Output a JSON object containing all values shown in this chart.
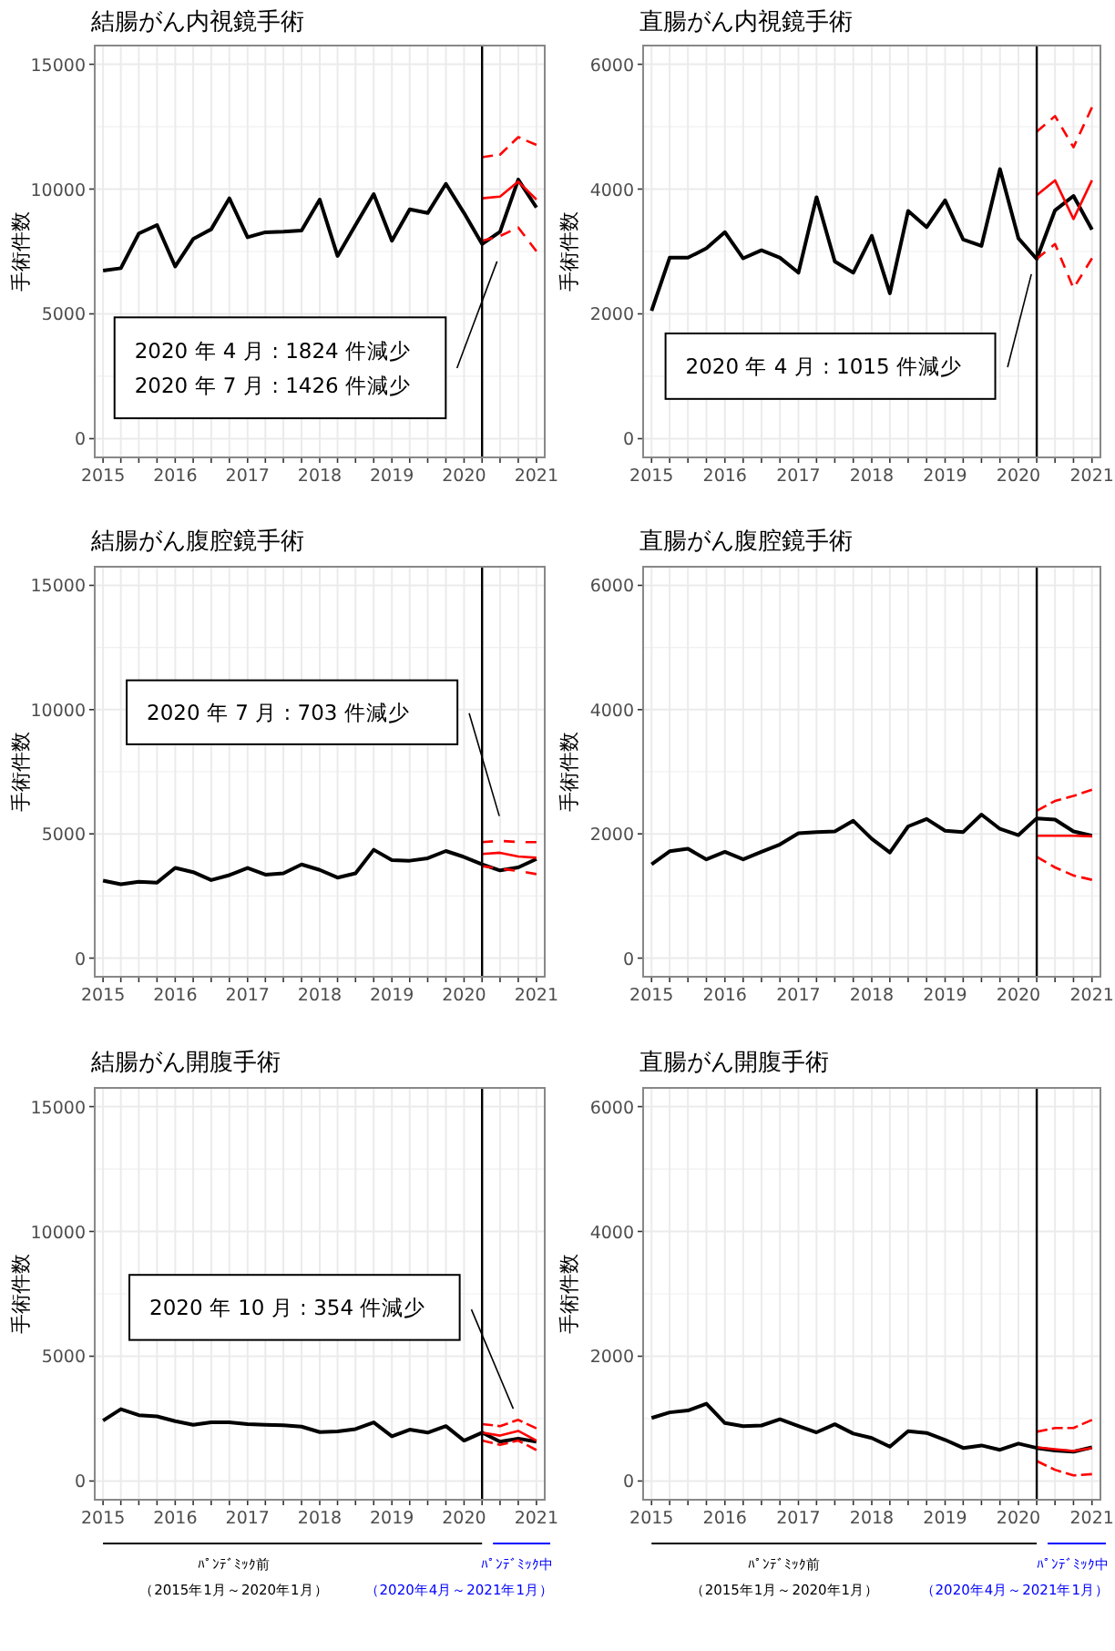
{
  "chart_data": [
    {
      "type": "line",
      "title": "結腸がん内視鏡手術",
      "ylabel": "手術件数",
      "x": [
        "2015-01",
        "2015-04",
        "2015-07",
        "2015-10",
        "2016-01",
        "2016-04",
        "2016-07",
        "2016-10",
        "2017-01",
        "2017-04",
        "2017-07",
        "2017-10",
        "2018-01",
        "2018-04",
        "2018-07",
        "2018-10",
        "2019-01",
        "2019-04",
        "2019-07",
        "2019-10",
        "2020-01",
        "2020-04",
        "2020-07",
        "2020-10",
        "2021-01"
      ],
      "series": [
        {
          "color": "#000000",
          "line_style": "solid",
          "values": [
            6730,
            6830,
            8220,
            8560,
            6900,
            8000,
            8390,
            9630,
            8070,
            8270,
            8290,
            8340,
            9580,
            7320,
            8560,
            9800,
            7930,
            9190,
            9040,
            10210,
            9040,
            7800,
            8290,
            10380,
            9260
          ]
        },
        {
          "color": "#ff0000",
          "line_style": "solid",
          "x": [
            "2020-04",
            "2020-07",
            "2020-10",
            "2021-01"
          ],
          "values": [
            9630,
            9700,
            10300,
            9580
          ]
        },
        {
          "color": "#ff0000",
          "line_style": "dashed",
          "x": [
            "2020-04",
            "2020-07",
            "2020-10",
            "2021-01"
          ],
          "values": [
            11280,
            11380,
            12080,
            11770
          ]
        },
        {
          "color": "#ff0000",
          "line_style": "dashed",
          "x": [
            "2020-04",
            "2020-07",
            "2020-10",
            "2021-01"
          ],
          "values": [
            7930,
            8120,
            8460,
            7510
          ]
        }
      ],
      "annotations": [
        "2020 年 4 月 : 1824 件減少",
        "2020 年 7 月 : 1426 件減少"
      ],
      "ref_lines": [
        {
          "axis": "x",
          "value": "2020-04",
          "color": "#000000"
        }
      ],
      "xlim": [
        "2014-11-20",
        "2021-02-12"
      ],
      "ylim": [
        -750,
        15750
      ],
      "yticks": [
        0,
        5000,
        10000,
        15000
      ],
      "xticks": [
        {
          "value": "2015-01",
          "label": "2015"
        },
        {
          "value": "2015-04",
          "label": null
        },
        {
          "value": "2015-07",
          "label": null
        },
        {
          "value": "2015-10",
          "label": null
        },
        {
          "value": "2016-01",
          "label": "2016"
        },
        {
          "value": "2016-04",
          "label": null
        },
        {
          "value": "2016-07",
          "label": null
        },
        {
          "value": "2016-10",
          "label": null
        },
        {
          "value": "2017-01",
          "label": "2017"
        },
        {
          "value": "2017-04",
          "label": null
        },
        {
          "value": "2017-07",
          "label": null
        },
        {
          "value": "2017-10",
          "label": null
        },
        {
          "value": "2018-01",
          "label": "2018"
        },
        {
          "value": "2018-04",
          "label": null
        },
        {
          "value": "2018-07",
          "label": null
        },
        {
          "value": "2018-10",
          "label": null
        },
        {
          "value": "2019-01",
          "label": "2019"
        },
        {
          "value": "2019-04",
          "label": null
        },
        {
          "value": "2019-07",
          "label": null
        },
        {
          "value": "2019-10",
          "label": null
        },
        {
          "value": "2020-01",
          "label": "2020"
        },
        {
          "value": "2020-04",
          "label": null
        },
        {
          "value": "2020-07",
          "label": null
        },
        {
          "value": "2020-10",
          "label": null
        },
        {
          "value": "2021-01",
          "label": "2021"
        }
      ],
      "grid": true
    },
    {
      "type": "line",
      "title": "直腸がん内視鏡手術",
      "ylabel": "手術件数",
      "x": [
        "2015-01",
        "2015-04",
        "2015-07",
        "2015-10",
        "2016-01",
        "2016-04",
        "2016-07",
        "2016-10",
        "2017-01",
        "2017-04",
        "2017-07",
        "2017-10",
        "2018-01",
        "2018-04",
        "2018-07",
        "2018-10",
        "2019-01",
        "2019-04",
        "2019-07",
        "2019-10",
        "2020-01",
        "2020-04",
        "2020-07",
        "2020-10",
        "2021-01"
      ],
      "series": [
        {
          "color": "#000000",
          "line_style": "solid",
          "values": [
            2050,
            2900,
            2900,
            3050,
            3310,
            2890,
            3020,
            2900,
            2660,
            3870,
            2840,
            2660,
            3250,
            2330,
            3650,
            3390,
            3820,
            3190,
            3090,
            4320,
            3210,
            2880,
            3660,
            3890,
            3350
          ]
        },
        {
          "color": "#ff0000",
          "line_style": "solid",
          "x": [
            "2020-04",
            "2020-07",
            "2020-10",
            "2021-01"
          ],
          "values": [
            3900,
            4140,
            3520,
            4140
          ]
        },
        {
          "color": "#ff0000",
          "line_style": "dashed",
          "x": [
            "2020-04",
            "2020-07",
            "2020-10",
            "2021-01"
          ],
          "values": [
            4920,
            5170,
            4670,
            5310
          ]
        },
        {
          "color": "#ff0000",
          "line_style": "dashed",
          "x": [
            "2020-04",
            "2020-07",
            "2020-10",
            "2021-01"
          ],
          "values": [
            2880,
            3120,
            2410,
            2890
          ]
        }
      ],
      "annotations": [
        "2020 年 4 月 : 1015 件減少"
      ],
      "ref_lines": [
        {
          "axis": "x",
          "value": "2020-04",
          "color": "#000000"
        }
      ],
      "xlim": [
        "2014-11-20",
        "2021-02-12"
      ],
      "ylim": [
        -300,
        6300
      ],
      "yticks": [
        0,
        2000,
        4000,
        6000
      ],
      "xticks": [
        {
          "value": "2015-01",
          "label": "2015"
        },
        {
          "value": "2015-04",
          "label": null
        },
        {
          "value": "2015-07",
          "label": null
        },
        {
          "value": "2015-10",
          "label": null
        },
        {
          "value": "2016-01",
          "label": "2016"
        },
        {
          "value": "2016-04",
          "label": null
        },
        {
          "value": "2016-07",
          "label": null
        },
        {
          "value": "2016-10",
          "label": null
        },
        {
          "value": "2017-01",
          "label": "2017"
        },
        {
          "value": "2017-04",
          "label": null
        },
        {
          "value": "2017-07",
          "label": null
        },
        {
          "value": "2017-10",
          "label": null
        },
        {
          "value": "2018-01",
          "label": "2018"
        },
        {
          "value": "2018-04",
          "label": null
        },
        {
          "value": "2018-07",
          "label": null
        },
        {
          "value": "2018-10",
          "label": null
        },
        {
          "value": "2019-01",
          "label": "2019"
        },
        {
          "value": "2019-04",
          "label": null
        },
        {
          "value": "2019-07",
          "label": null
        },
        {
          "value": "2019-10",
          "label": null
        },
        {
          "value": "2020-01",
          "label": "2020"
        },
        {
          "value": "2020-04",
          "label": null
        },
        {
          "value": "2020-07",
          "label": null
        },
        {
          "value": "2020-10",
          "label": null
        },
        {
          "value": "2021-01",
          "label": "2021"
        }
      ],
      "grid": true
    },
    {
      "type": "line",
      "title": "結腸がん腹腔鏡手術",
      "ylabel": "手術件数",
      "x": [
        "2015-01",
        "2015-04",
        "2015-07",
        "2015-10",
        "2016-01",
        "2016-04",
        "2016-07",
        "2016-10",
        "2017-01",
        "2017-04",
        "2017-07",
        "2017-10",
        "2018-01",
        "2018-04",
        "2018-07",
        "2018-10",
        "2019-01",
        "2019-04",
        "2019-07",
        "2019-10",
        "2020-01",
        "2020-04",
        "2020-07",
        "2020-10",
        "2021-01"
      ],
      "series": [
        {
          "color": "#000000",
          "line_style": "solid",
          "values": [
            3120,
            2970,
            3070,
            3040,
            3630,
            3460,
            3140,
            3340,
            3630,
            3360,
            3410,
            3770,
            3550,
            3240,
            3410,
            4360,
            3940,
            3920,
            4020,
            4310,
            4070,
            3770,
            3530,
            3650,
            3990
          ]
        },
        {
          "color": "#ff0000",
          "line_style": "solid",
          "x": [
            "2020-04",
            "2020-07",
            "2020-10",
            "2021-01"
          ],
          "values": [
            4190,
            4240,
            4090,
            4040
          ]
        },
        {
          "color": "#ff0000",
          "line_style": "dashed",
          "x": [
            "2020-04",
            "2020-07",
            "2020-10",
            "2021-01"
          ],
          "values": [
            4670,
            4720,
            4670,
            4670
          ]
        },
        {
          "color": "#ff0000",
          "line_style": "dashed",
          "x": [
            "2020-04",
            "2020-07",
            "2020-10",
            "2021-01"
          ],
          "values": [
            3700,
            3600,
            3510,
            3380
          ]
        }
      ],
      "annotations": [
        "2020 年 7 月 : 703 件減少"
      ],
      "ref_lines": [
        {
          "axis": "x",
          "value": "2020-04",
          "color": "#000000"
        }
      ],
      "xlim": [
        "2014-11-20",
        "2021-02-12"
      ],
      "ylim": [
        -750,
        15750
      ],
      "yticks": [
        0,
        5000,
        10000,
        15000
      ],
      "xticks": [
        {
          "value": "2015-01",
          "label": "2015"
        },
        {
          "value": "2015-04",
          "label": null
        },
        {
          "value": "2015-07",
          "label": null
        },
        {
          "value": "2015-10",
          "label": null
        },
        {
          "value": "2016-01",
          "label": "2016"
        },
        {
          "value": "2016-04",
          "label": null
        },
        {
          "value": "2016-07",
          "label": null
        },
        {
          "value": "2016-10",
          "label": null
        },
        {
          "value": "2017-01",
          "label": "2017"
        },
        {
          "value": "2017-04",
          "label": null
        },
        {
          "value": "2017-07",
          "label": null
        },
        {
          "value": "2017-10",
          "label": null
        },
        {
          "value": "2018-01",
          "label": "2018"
        },
        {
          "value": "2018-04",
          "label": null
        },
        {
          "value": "2018-07",
          "label": null
        },
        {
          "value": "2018-10",
          "label": null
        },
        {
          "value": "2019-01",
          "label": "2019"
        },
        {
          "value": "2019-04",
          "label": null
        },
        {
          "value": "2019-07",
          "label": null
        },
        {
          "value": "2019-10",
          "label": null
        },
        {
          "value": "2020-01",
          "label": "2020"
        },
        {
          "value": "2020-04",
          "label": null
        },
        {
          "value": "2020-07",
          "label": null
        },
        {
          "value": "2020-10",
          "label": null
        },
        {
          "value": "2021-01",
          "label": "2021"
        }
      ],
      "grid": true
    },
    {
      "type": "line",
      "title": "直腸がん腹腔鏡手術",
      "ylabel": "手術件数",
      "x": [
        "2015-01",
        "2015-04",
        "2015-07",
        "2015-10",
        "2016-01",
        "2016-04",
        "2016-07",
        "2016-10",
        "2017-01",
        "2017-04",
        "2017-07",
        "2017-10",
        "2018-01",
        "2018-04",
        "2018-07",
        "2018-10",
        "2019-01",
        "2019-04",
        "2019-07",
        "2019-10",
        "2020-01",
        "2020-04",
        "2020-07",
        "2020-10",
        "2021-01"
      ],
      "series": [
        {
          "color": "#000000",
          "line_style": "solid",
          "values": [
            1510,
            1720,
            1760,
            1590,
            1710,
            1590,
            1710,
            1830,
            2010,
            2030,
            2040,
            2210,
            1920,
            1700,
            2120,
            2240,
            2050,
            2030,
            2310,
            2080,
            1980,
            2250,
            2230,
            2040,
            1970
          ]
        },
        {
          "color": "#ff0000",
          "line_style": "solid",
          "x": [
            "2020-04",
            "2020-07",
            "2020-10",
            "2021-01"
          ],
          "values": [
            1970,
            1970,
            1970,
            1960
          ]
        },
        {
          "color": "#ff0000",
          "line_style": "dashed",
          "x": [
            "2020-04",
            "2020-07",
            "2020-10",
            "2021-01"
          ],
          "values": [
            2370,
            2530,
            2610,
            2710
          ]
        },
        {
          "color": "#ff0000",
          "line_style": "dashed",
          "x": [
            "2020-04",
            "2020-07",
            "2020-10",
            "2021-01"
          ],
          "values": [
            1630,
            1460,
            1330,
            1260
          ]
        }
      ],
      "ref_lines": [
        {
          "axis": "x",
          "value": "2020-04",
          "color": "#000000"
        }
      ],
      "xlim": [
        "2014-11-20",
        "2021-02-12"
      ],
      "ylim": [
        -300,
        6300
      ],
      "yticks": [
        0,
        2000,
        4000,
        6000
      ],
      "xticks": [
        {
          "value": "2015-01",
          "label": "2015"
        },
        {
          "value": "2015-04",
          "label": null
        },
        {
          "value": "2015-07",
          "label": null
        },
        {
          "value": "2015-10",
          "label": null
        },
        {
          "value": "2016-01",
          "label": "2016"
        },
        {
          "value": "2016-04",
          "label": null
        },
        {
          "value": "2016-07",
          "label": null
        },
        {
          "value": "2016-10",
          "label": null
        },
        {
          "value": "2017-01",
          "label": "2017"
        },
        {
          "value": "2017-04",
          "label": null
        },
        {
          "value": "2017-07",
          "label": null
        },
        {
          "value": "2017-10",
          "label": null
        },
        {
          "value": "2018-01",
          "label": "2018"
        },
        {
          "value": "2018-04",
          "label": null
        },
        {
          "value": "2018-07",
          "label": null
        },
        {
          "value": "2018-10",
          "label": null
        },
        {
          "value": "2019-01",
          "label": "2019"
        },
        {
          "value": "2019-04",
          "label": null
        },
        {
          "value": "2019-07",
          "label": null
        },
        {
          "value": "2019-10",
          "label": null
        },
        {
          "value": "2020-01",
          "label": "2020"
        },
        {
          "value": "2020-04",
          "label": null
        },
        {
          "value": "2020-07",
          "label": null
        },
        {
          "value": "2020-10",
          "label": null
        },
        {
          "value": "2021-01",
          "label": "2021"
        }
      ],
      "grid": true
    },
    {
      "type": "line",
      "title": "結腸がん開腹手術",
      "ylabel": "手術件数",
      "x": [
        "2015-01",
        "2015-04",
        "2015-07",
        "2015-10",
        "2016-01",
        "2016-04",
        "2016-07",
        "2016-10",
        "2017-01",
        "2017-04",
        "2017-07",
        "2017-10",
        "2018-01",
        "2018-04",
        "2018-07",
        "2018-10",
        "2019-01",
        "2019-04",
        "2019-07",
        "2019-10",
        "2020-01",
        "2020-04",
        "2020-07",
        "2020-10",
        "2021-01"
      ],
      "series": [
        {
          "color": "#000000",
          "line_style": "solid",
          "values": [
            2420,
            2880,
            2640,
            2590,
            2400,
            2250,
            2350,
            2350,
            2280,
            2250,
            2230,
            2180,
            1960,
            1990,
            2080,
            2350,
            1790,
            2060,
            1940,
            2200,
            1620,
            1940,
            1580,
            1700,
            1580
          ]
        },
        {
          "color": "#ff0000",
          "line_style": "solid",
          "x": [
            "2020-04",
            "2020-07",
            "2020-10",
            "2021-01"
          ],
          "values": [
            1940,
            1820,
            2010,
            1620
          ]
        },
        {
          "color": "#ff0000",
          "line_style": "dashed",
          "x": [
            "2020-04",
            "2020-07",
            "2020-10",
            "2021-01"
          ],
          "values": [
            2280,
            2200,
            2450,
            2110
          ]
        },
        {
          "color": "#ff0000",
          "line_style": "dashed",
          "x": [
            "2020-04",
            "2020-07",
            "2020-10",
            "2021-01"
          ],
          "values": [
            1620,
            1450,
            1620,
            1240
          ]
        }
      ],
      "annotations": [
        "2020 年 10 月 : 354 件減少",
        "ﾊﾟﾝﾃﾞﾐｯｸ前",
        "（2015年1月～2020年1月）",
        "ﾊﾟﾝﾃﾞﾐｯｸ中",
        "（2020年4月～2021年1月）"
      ],
      "ref_lines": [
        {
          "axis": "x",
          "value": "2020-04",
          "color": "#000000"
        }
      ],
      "xlim": [
        "2014-11-20",
        "2021-02-12"
      ],
      "ylim": [
        -750,
        15750
      ],
      "yticks": [
        0,
        5000,
        10000,
        15000
      ],
      "xticks": [
        {
          "value": "2015-01",
          "label": "2015"
        },
        {
          "value": "2015-04",
          "label": null
        },
        {
          "value": "2015-07",
          "label": null
        },
        {
          "value": "2015-10",
          "label": null
        },
        {
          "value": "2016-01",
          "label": "2016"
        },
        {
          "value": "2016-04",
          "label": null
        },
        {
          "value": "2016-07",
          "label": null
        },
        {
          "value": "2016-10",
          "label": null
        },
        {
          "value": "2017-01",
          "label": "2017"
        },
        {
          "value": "2017-04",
          "label": null
        },
        {
          "value": "2017-07",
          "label": null
        },
        {
          "value": "2017-10",
          "label": null
        },
        {
          "value": "2018-01",
          "label": "2018"
        },
        {
          "value": "2018-04",
          "label": null
        },
        {
          "value": "2018-07",
          "label": null
        },
        {
          "value": "2018-10",
          "label": null
        },
        {
          "value": "2019-01",
          "label": "2019"
        },
        {
          "value": "2019-04",
          "label": null
        },
        {
          "value": "2019-07",
          "label": null
        },
        {
          "value": "2019-10",
          "label": null
        },
        {
          "value": "2020-01",
          "label": "2020"
        },
        {
          "value": "2020-04",
          "label": null
        },
        {
          "value": "2020-07",
          "label": null
        },
        {
          "value": "2020-10",
          "label": null
        },
        {
          "value": "2021-01",
          "label": "2021"
        }
      ],
      "grid": true
    },
    {
      "type": "line",
      "title": "直腸がん開腹手術",
      "ylabel": "手術件数",
      "x": [
        "2015-01",
        "2015-04",
        "2015-07",
        "2015-10",
        "2016-01",
        "2016-04",
        "2016-07",
        "2016-10",
        "2017-01",
        "2017-04",
        "2017-07",
        "2017-10",
        "2018-01",
        "2018-04",
        "2018-07",
        "2018-10",
        "2019-01",
        "2019-04",
        "2019-07",
        "2019-10",
        "2020-01",
        "2020-04",
        "2020-07",
        "2020-10",
        "2021-01"
      ],
      "series": [
        {
          "color": "#000000",
          "line_style": "solid",
          "values": [
            1010,
            1100,
            1130,
            1240,
            930,
            880,
            890,
            990,
            880,
            780,
            910,
            760,
            690,
            550,
            800,
            770,
            660,
            530,
            570,
            500,
            600,
            530,
            490,
            470,
            540
          ]
        },
        {
          "color": "#ff0000",
          "line_style": "solid",
          "x": [
            "2020-04",
            "2020-07",
            "2020-10",
            "2021-01"
          ],
          "values": [
            540,
            510,
            480,
            530
          ]
        },
        {
          "color": "#ff0000",
          "line_style": "dashed",
          "x": [
            "2020-04",
            "2020-07",
            "2020-10",
            "2021-01"
          ],
          "values": [
            790,
            850,
            850,
            980
          ]
        },
        {
          "color": "#ff0000",
          "line_style": "dashed",
          "x": [
            "2020-04",
            "2020-07",
            "2020-10",
            "2021-01"
          ],
          "values": [
            320,
            180,
            90,
            110
          ]
        }
      ],
      "annotations": [
        "ﾊﾟﾝﾃﾞﾐｯｸ前",
        "（2015年1月～2020年1月）",
        "ﾊﾟﾝﾃﾞﾐｯｸ中",
        "（2020年4月～2021年1月）"
      ],
      "ref_lines": [
        {
          "axis": "x",
          "value": "2020-04",
          "color": "#000000"
        }
      ],
      "xlim": [
        "2014-11-20",
        "2021-02-12"
      ],
      "ylim": [
        -300,
        6300
      ],
      "yticks": [
        0,
        2000,
        4000,
        6000
      ],
      "xticks": [
        {
          "value": "2015-01",
          "label": "2015"
        },
        {
          "value": "2015-04",
          "label": null
        },
        {
          "value": "2015-07",
          "label": null
        },
        {
          "value": "2015-10",
          "label": null
        },
        {
          "value": "2016-01",
          "label": "2016"
        },
        {
          "value": "2016-04",
          "label": null
        },
        {
          "value": "2016-07",
          "label": null
        },
        {
          "value": "2016-10",
          "label": null
        },
        {
          "value": "2017-01",
          "label": "2017"
        },
        {
          "value": "2017-04",
          "label": null
        },
        {
          "value": "2017-07",
          "label": null
        },
        {
          "value": "2017-10",
          "label": null
        },
        {
          "value": "2018-01",
          "label": "2018"
        },
        {
          "value": "2018-04",
          "label": null
        },
        {
          "value": "2018-07",
          "label": null
        },
        {
          "value": "2018-10",
          "label": null
        },
        {
          "value": "2019-01",
          "label": "2019"
        },
        {
          "value": "2019-04",
          "label": null
        },
        {
          "value": "2019-07",
          "label": null
        },
        {
          "value": "2019-10",
          "label": null
        },
        {
          "value": "2020-01",
          "label": "2020"
        },
        {
          "value": "2020-04",
          "label": null
        },
        {
          "value": "2020-07",
          "label": null
        },
        {
          "value": "2020-10",
          "label": null
        },
        {
          "value": "2021-01",
          "label": "2021"
        }
      ],
      "grid": true
    }
  ]
}
